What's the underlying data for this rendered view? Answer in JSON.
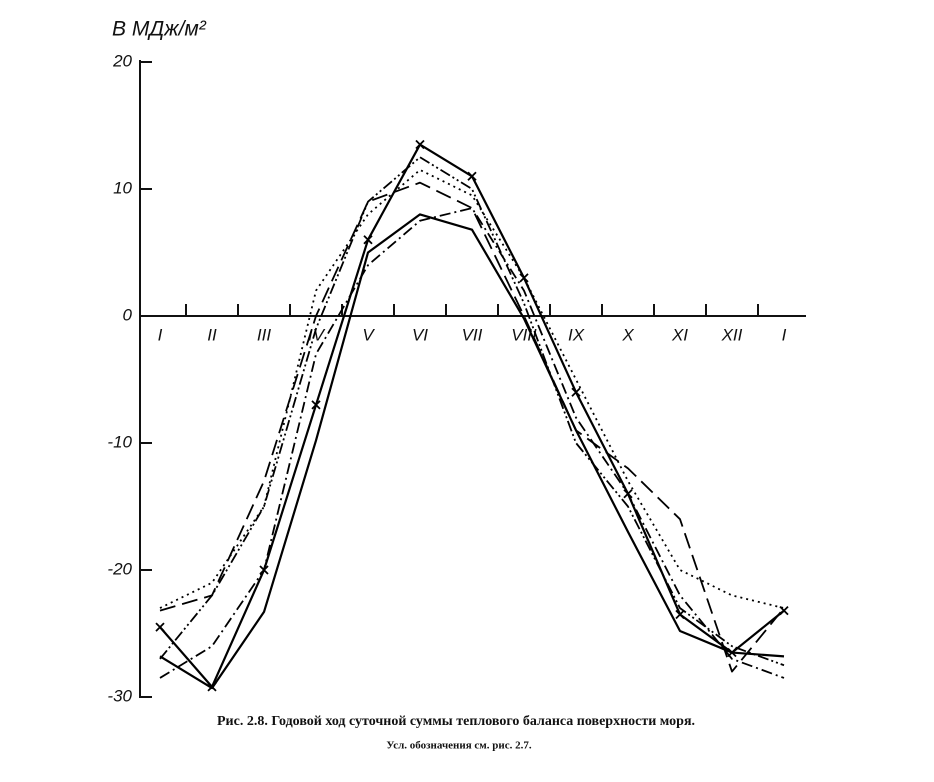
{
  "chart_data": {
    "type": "line",
    "title": "Рис. 2.8. Годовой ход суточной суммы теплового баланса поверхности моря.",
    "subtitle": "Усл. обозначения см. рис. 2.7.",
    "y_label": "B МДж/м²",
    "categories": [
      "I",
      "II",
      "III",
      "IV",
      "V",
      "VI",
      "VII",
      "VIII",
      "IX",
      "X",
      "XI",
      "XII",
      "I"
    ],
    "ylim": [
      -30,
      20
    ],
    "yticks": [
      20,
      10,
      0,
      -10,
      -20,
      -30
    ],
    "grid": false,
    "series": [
      {
        "color": "#000000",
        "dash": "solid",
        "width": 2.2,
        "values": [
          -26.8,
          -29.3,
          -23.3,
          -9.8,
          5,
          8,
          6.8,
          -0.2,
          -9,
          -17,
          -24.8,
          -26.5,
          -26.8
        ]
      },
      {
        "color": "#000000",
        "dash": "solid",
        "marker": "x",
        "width": 2.2,
        "values": [
          -24.5,
          -29.2,
          -20,
          -7,
          6,
          13.5,
          11,
          3,
          -6,
          -14,
          -23.5,
          -26.5,
          -23.2
        ]
      },
      {
        "color": "#000000",
        "dash": "dashed",
        "width": 1.8,
        "values": [
          -23.2,
          -22,
          -13,
          0,
          9,
          10.5,
          8.5,
          0,
          -9,
          -12,
          -16,
          -28,
          -23
        ]
      },
      {
        "color": "#000000",
        "dash": "dotted",
        "width": 1.8,
        "values": [
          -23,
          -21,
          -15,
          2,
          8,
          11.5,
          9.5,
          3,
          -5,
          -13,
          -20,
          -22,
          -23
        ]
      },
      {
        "color": "#000000",
        "dash": "dash-dot",
        "width": 1.8,
        "values": [
          -28.5,
          -26,
          -20,
          -3,
          4,
          7.5,
          8.5,
          2,
          -8,
          -14,
          -22,
          -27,
          -28.5
        ]
      },
      {
        "color": "#000000",
        "dash": "dash-dot-dot",
        "width": 1.8,
        "values": [
          -27,
          -22,
          -15,
          -1,
          9,
          12.5,
          10,
          1,
          -10,
          -15,
          -23,
          -26,
          -27.5
        ]
      }
    ]
  }
}
